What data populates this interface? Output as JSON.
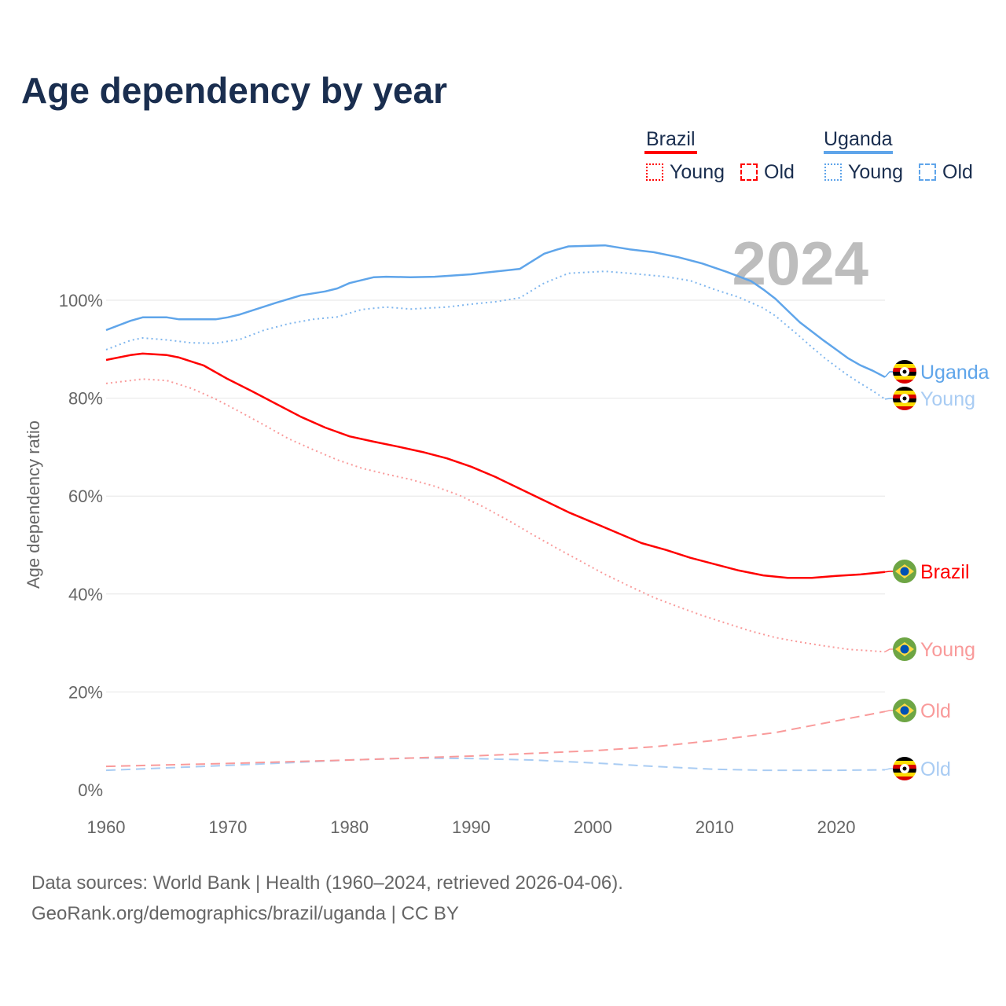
{
  "title": "Age dependency by year",
  "legend": {
    "groups": [
      {
        "country": "Brazil",
        "color": "#ff0000",
        "items": [
          "Young",
          "Old"
        ]
      },
      {
        "country": "Uganda",
        "color": "#5fa5ea",
        "items": [
          "Young",
          "Old"
        ]
      }
    ]
  },
  "year_label": "2024",
  "sources": {
    "line1": "Data sources: World Bank | Health (1960–2024, retrieved 2026-04-06).",
    "line2": "GeoRank.org/demographics/brazil/uganda | CC BY"
  },
  "chart_data": {
    "type": "line",
    "title": "Age dependency by year",
    "xlabel": "",
    "ylabel": "Age dependency ratio",
    "xlim": [
      1960,
      2024
    ],
    "ylim": [
      0,
      115
    ],
    "x_ticks": [
      "1960",
      "1970",
      "1980",
      "1990",
      "2000",
      "2010",
      "2020"
    ],
    "y_ticks": [
      {
        "v": 0,
        "label": "0%"
      },
      {
        "v": 20,
        "label": "20%"
      },
      {
        "v": 40,
        "label": "40%"
      },
      {
        "v": 60,
        "label": "60%"
      },
      {
        "v": 80,
        "label": "80%"
      },
      {
        "v": 100,
        "label": "100%"
      }
    ],
    "grid": true,
    "series": [
      {
        "name": "Uganda",
        "end_label": "Uganda",
        "country": "Uganda",
        "color": "#5fa5ea",
        "label_color": "#5fa5ea",
        "dash": "",
        "width": 2.5,
        "points": [
          [
            1960,
            93.9
          ],
          [
            1962,
            95.8
          ],
          [
            1963,
            96.5
          ],
          [
            1965,
            96.5
          ],
          [
            1966,
            96.1
          ],
          [
            1969,
            96.1
          ],
          [
            1970,
            96.5
          ],
          [
            1971,
            97.1
          ],
          [
            1972,
            97.9
          ],
          [
            1974,
            99.5
          ],
          [
            1976,
            101
          ],
          [
            1978,
            101.8
          ],
          [
            1979,
            102.4
          ],
          [
            1980,
            103.5
          ],
          [
            1982,
            104.7
          ],
          [
            1983,
            104.8
          ],
          [
            1985,
            104.7
          ],
          [
            1987,
            104.8
          ],
          [
            1990,
            105.3
          ],
          [
            1991,
            105.6
          ],
          [
            1994,
            106.4
          ],
          [
            1996,
            109.5
          ],
          [
            1997,
            110.3
          ],
          [
            1998,
            111
          ],
          [
            2001,
            111.2
          ],
          [
            2003,
            110.4
          ],
          [
            2005,
            109.8
          ],
          [
            2007,
            108.8
          ],
          [
            2009,
            107.5
          ],
          [
            2011,
            105.8
          ],
          [
            2013,
            103.9
          ],
          [
            2014,
            102.2
          ],
          [
            2015,
            100.3
          ],
          [
            2016,
            97.9
          ],
          [
            2017,
            95.5
          ],
          [
            2018,
            93.6
          ],
          [
            2019,
            91.7
          ],
          [
            2020,
            89.9
          ],
          [
            2021,
            88.1
          ],
          [
            2022,
            86.7
          ],
          [
            2023,
            85.6
          ],
          [
            2024,
            84.3
          ]
        ]
      },
      {
        "name": "Uganda Young",
        "end_label": "Young",
        "country": "Uganda",
        "color": "#7fb6ee",
        "label_color": "#a9ccf3",
        "dash": "2 4",
        "width": 2,
        "points": [
          [
            1960,
            89.9
          ],
          [
            1962,
            91.8
          ],
          [
            1963,
            92.3
          ],
          [
            1965,
            91.9
          ],
          [
            1967,
            91.3
          ],
          [
            1969,
            91.2
          ],
          [
            1971,
            92
          ],
          [
            1973,
            93.9
          ],
          [
            1975,
            95.2
          ],
          [
            1977,
            96.1
          ],
          [
            1979,
            96.6
          ],
          [
            1981,
            98.1
          ],
          [
            1983,
            98.6
          ],
          [
            1985,
            98.2
          ],
          [
            1988,
            98.6
          ],
          [
            1990,
            99.2
          ],
          [
            1992,
            99.7
          ],
          [
            1994,
            100.5
          ],
          [
            1996,
            103.5
          ],
          [
            1998,
            105.5
          ],
          [
            2001,
            105.9
          ],
          [
            2003,
            105.5
          ],
          [
            2006,
            104.8
          ],
          [
            2008,
            104
          ],
          [
            2010,
            102.2
          ],
          [
            2012,
            100.6
          ],
          [
            2014,
            98.4
          ],
          [
            2015,
            96.8
          ],
          [
            2016,
            94.7
          ],
          [
            2017,
            92.6
          ],
          [
            2018,
            90.4
          ],
          [
            2019,
            88.3
          ],
          [
            2020,
            86.4
          ],
          [
            2021,
            84.6
          ],
          [
            2022,
            83
          ],
          [
            2023,
            81.5
          ],
          [
            2024,
            79.8
          ]
        ]
      },
      {
        "name": "Uganda Old",
        "end_label": "Old",
        "country": "Uganda",
        "color": "#a9ccf3",
        "label_color": "#a9ccf3",
        "dash": "12 7",
        "width": 2,
        "points": [
          [
            1960,
            4.0
          ],
          [
            1970,
            5.0
          ],
          [
            1980,
            6.1
          ],
          [
            1985,
            6.5
          ],
          [
            1990,
            6.4
          ],
          [
            1995,
            6.1
          ],
          [
            2000,
            5.5
          ],
          [
            2005,
            4.8
          ],
          [
            2010,
            4.2
          ],
          [
            2014,
            4.0
          ],
          [
            2020,
            4.0
          ],
          [
            2024,
            4.1
          ]
        ]
      },
      {
        "name": "Brazil",
        "end_label": "Brazil",
        "country": "Brazil",
        "color": "#ff0000",
        "label_color": "#ff0000",
        "dash": "",
        "width": 2.5,
        "points": [
          [
            1960,
            87.8
          ],
          [
            1962,
            88.8
          ],
          [
            1963,
            89.1
          ],
          [
            1965,
            88.8
          ],
          [
            1966,
            88.3
          ],
          [
            1968,
            86.7
          ],
          [
            1970,
            83.9
          ],
          [
            1972,
            81.4
          ],
          [
            1974,
            78.8
          ],
          [
            1976,
            76.2
          ],
          [
            1978,
            74
          ],
          [
            1980,
            72.2
          ],
          [
            1982,
            71.1
          ],
          [
            1984,
            70.1
          ],
          [
            1986,
            69
          ],
          [
            1988,
            67.7
          ],
          [
            1990,
            66
          ],
          [
            1992,
            63.9
          ],
          [
            1994,
            61.5
          ],
          [
            1996,
            59.1
          ],
          [
            1998,
            56.7
          ],
          [
            2000,
            54.6
          ],
          [
            2002,
            52.5
          ],
          [
            2004,
            50.4
          ],
          [
            2006,
            49
          ],
          [
            2008,
            47.4
          ],
          [
            2010,
            46.1
          ],
          [
            2012,
            44.8
          ],
          [
            2014,
            43.8
          ],
          [
            2016,
            43.3
          ],
          [
            2018,
            43.3
          ],
          [
            2020,
            43.7
          ],
          [
            2022,
            44
          ],
          [
            2024,
            44.5
          ]
        ]
      },
      {
        "name": "Brazil Young",
        "end_label": "Young",
        "country": "Brazil",
        "color": "#f99a9a",
        "label_color": "#f99a9a",
        "dash": "2 4",
        "width": 2,
        "points": [
          [
            1960,
            83
          ],
          [
            1963,
            83.9
          ],
          [
            1965,
            83.6
          ],
          [
            1967,
            82
          ],
          [
            1969,
            79.8
          ],
          [
            1971,
            77.2
          ],
          [
            1973,
            74.5
          ],
          [
            1975,
            71.7
          ],
          [
            1977,
            69.5
          ],
          [
            1979,
            67.4
          ],
          [
            1981,
            65.7
          ],
          [
            1983,
            64.5
          ],
          [
            1985,
            63.4
          ],
          [
            1987,
            62
          ],
          [
            1989,
            60.2
          ],
          [
            1991,
            57.8
          ],
          [
            1993,
            55.1
          ],
          [
            1995,
            52.2
          ],
          [
            1997,
            49.4
          ],
          [
            1999,
            46.7
          ],
          [
            2001,
            44
          ],
          [
            2003,
            41.6
          ],
          [
            2005,
            39.3
          ],
          [
            2007,
            37.4
          ],
          [
            2009,
            35.6
          ],
          [
            2011,
            34
          ],
          [
            2013,
            32.4
          ],
          [
            2015,
            31.1
          ],
          [
            2017,
            30.2
          ],
          [
            2019,
            29.4
          ],
          [
            2021,
            28.7
          ],
          [
            2024,
            28.2
          ]
        ]
      },
      {
        "name": "Brazil Old",
        "end_label": "Old",
        "country": "Brazil",
        "color": "#f99a9a",
        "label_color": "#f99a9a",
        "dash": "12 7",
        "width": 2,
        "points": [
          [
            1960,
            4.8
          ],
          [
            1970,
            5.4
          ],
          [
            1980,
            6.1
          ],
          [
            1990,
            6.9
          ],
          [
            2000,
            8
          ],
          [
            2005,
            8.8
          ],
          [
            2010,
            10.1
          ],
          [
            2015,
            11.7
          ],
          [
            2020,
            14.1
          ],
          [
            2024,
            16
          ]
        ]
      }
    ]
  }
}
